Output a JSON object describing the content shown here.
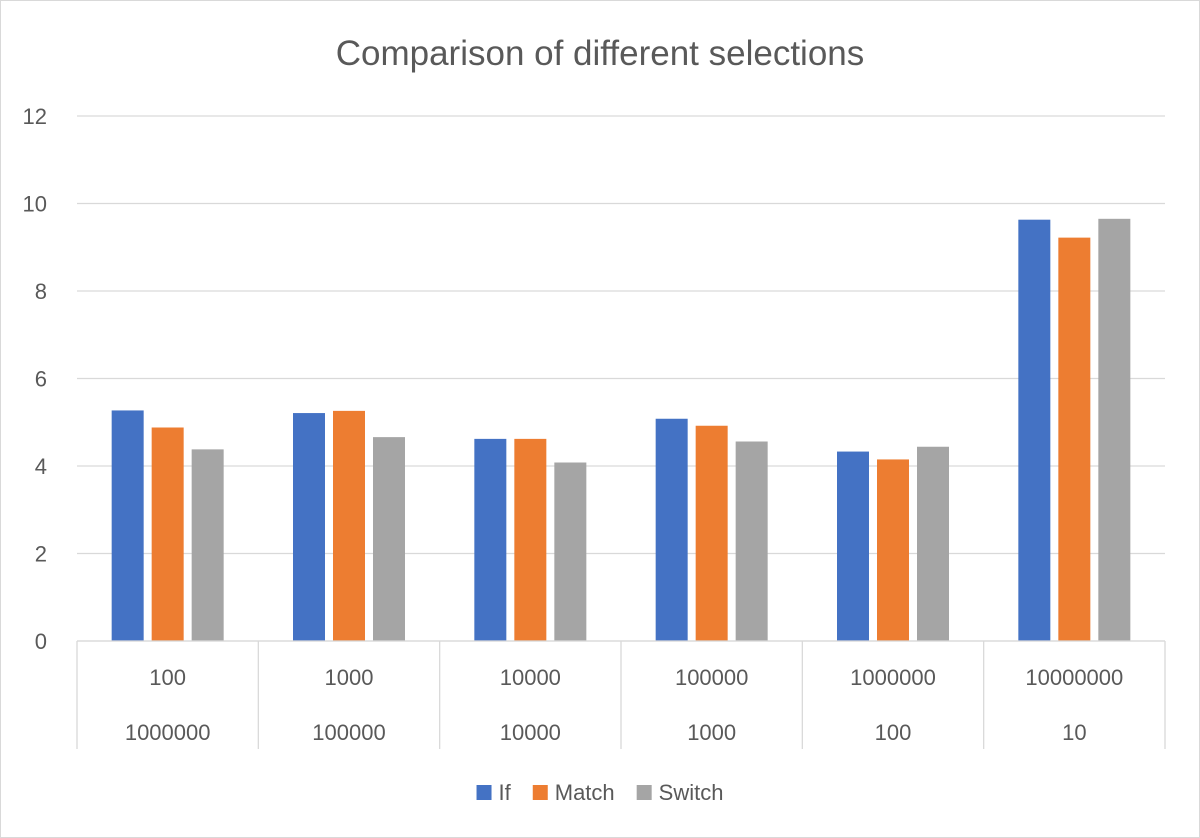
{
  "chart_data": {
    "type": "bar",
    "title": "Comparison of different selections",
    "categories": [
      [
        "100",
        "1000000"
      ],
      [
        "1000",
        "100000"
      ],
      [
        "10000",
        "10000"
      ],
      [
        "100000",
        "1000"
      ],
      [
        "1000000",
        "100"
      ],
      [
        "10000000",
        "10"
      ]
    ],
    "series": [
      {
        "name": "If",
        "color": "#4472c4",
        "values": [
          5.27,
          5.21,
          4.62,
          5.08,
          4.33,
          9.63
        ]
      },
      {
        "name": "Match",
        "color": "#ed7d31",
        "values": [
          4.88,
          5.26,
          4.62,
          4.92,
          4.15,
          9.22
        ]
      },
      {
        "name": "Switch",
        "color": "#a5a5a5",
        "values": [
          4.38,
          4.66,
          4.08,
          4.56,
          4.44,
          9.65
        ]
      }
    ],
    "ylim": [
      0,
      12
    ],
    "yticks": [
      0,
      2,
      4,
      6,
      8,
      10,
      12
    ],
    "grid": true,
    "legend": "bottom"
  }
}
